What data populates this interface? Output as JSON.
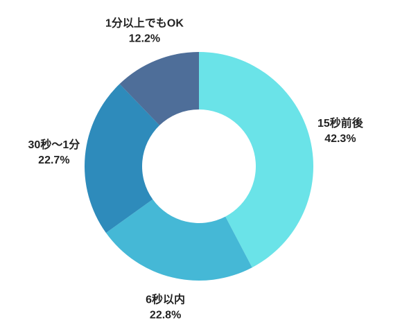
{
  "chart_data": {
    "type": "donut",
    "categories": [
      "15秒前後",
      "6秒以内",
      "30秒〜1分",
      "1分以上でもOK"
    ],
    "values": [
      42.3,
      22.8,
      22.7,
      12.2
    ],
    "value_labels": [
      "42.3%",
      "22.8%",
      "22.7%",
      "12.2%"
    ],
    "colors": [
      "#6ae3e8",
      "#45b8d6",
      "#2e8bbb",
      "#4e6e99"
    ]
  }
}
